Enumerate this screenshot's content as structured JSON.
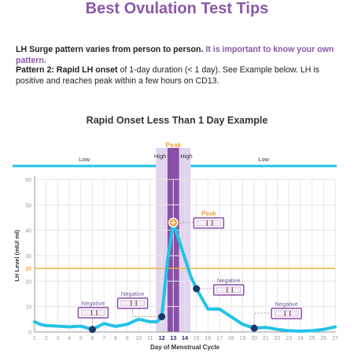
{
  "header": {
    "title": "Best Ovulation Test Tips"
  },
  "intro": {
    "lead": "LH Surge pattern varies from person to person.",
    "highlight": "It is important to know your own pattern."
  },
  "pattern": {
    "label": "Pattern 2: Rapid LH onset",
    "text": "of 1-day duration (< 1 day). See Example below. LH is positive and reaches peak within a few hours on CD13."
  },
  "chart_data": {
    "type": "line",
    "title": "Rapid Onset Less Than 1 Day Example",
    "xlabel": "Day of Menstrual Cycle",
    "ylabel": "LH Level (mIU/ ml)",
    "xlim": [
      1,
      27
    ],
    "ylim": [
      0,
      60
    ],
    "x_ticks": [
      1,
      2,
      3,
      4,
      5,
      6,
      7,
      8,
      9,
      10,
      11,
      12,
      13,
      14,
      15,
      16,
      17,
      18,
      19,
      20,
      21,
      22,
      23,
      24,
      25,
      26,
      27
    ],
    "y_ticks": [
      0,
      10,
      20,
      30,
      40,
      50,
      60
    ],
    "threshold": {
      "value": 25,
      "label": "25",
      "color": "#f2b134"
    },
    "series": [
      {
        "color": "#22c3e6",
        "x": [
          1,
          1.5,
          2,
          3,
          4,
          5,
          6,
          7,
          8,
          9,
          10,
          11,
          11.6,
          12,
          12.5,
          13,
          13.5,
          14,
          14.5,
          15,
          16,
          17,
          18,
          19,
          20,
          21,
          22,
          23,
          24,
          25,
          26,
          27
        ],
        "y": [
          4,
          3,
          2.5,
          2.3,
          2,
          2.3,
          1,
          3.3,
          2.2,
          3,
          5,
          4,
          4,
          6,
          28,
          43,
          36,
          29,
          22,
          17,
          9,
          9,
          6,
          3,
          1.5,
          1.8,
          1,
          0.5,
          0.3,
          0.5,
          1,
          2
        ]
      }
    ],
    "markers": [
      {
        "x": 6,
        "y": 1,
        "type": "negative"
      },
      {
        "x": 12,
        "y": 6,
        "type": "negative"
      },
      {
        "x": 13,
        "y": 43,
        "type": "peak"
      },
      {
        "x": 15,
        "y": 17,
        "type": "negative"
      },
      {
        "x": 20,
        "y": 1.5,
        "type": "negative"
      }
    ],
    "callouts": [
      {
        "label": "Negative",
        "at_x": 6,
        "kind": "negative"
      },
      {
        "label": "Negative",
        "at_x": 12,
        "kind": "negative"
      },
      {
        "label": "Peak",
        "at_x": 13,
        "kind": "peak"
      },
      {
        "label": "Negative",
        "at_x": 15,
        "kind": "negative"
      },
      {
        "label": "Negative",
        "at_x": 20,
        "kind": "negative"
      }
    ],
    "bands": [
      {
        "label": "Low",
        "from": 1,
        "to": 12,
        "kind": "low"
      },
      {
        "label": "High",
        "day": 12,
        "kind": "high"
      },
      {
        "label": "Peak",
        "day": 13,
        "kind": "peak"
      },
      {
        "label": "High",
        "day": 14,
        "kind": "high"
      },
      {
        "label": "Low",
        "from": 14,
        "to": 27,
        "kind": "low"
      }
    ],
    "highlight_days": [
      12,
      13,
      14
    ],
    "colors": {
      "line": "#22c3e6",
      "marker": "#173a6a",
      "peak": "#e9a13a",
      "purple": "#8a4fa8",
      "band_light": "#e2d4ee",
      "negative_text": "#7b5a9c",
      "peak_text": "#e9a13a",
      "grid": "#e5e5e5"
    }
  }
}
